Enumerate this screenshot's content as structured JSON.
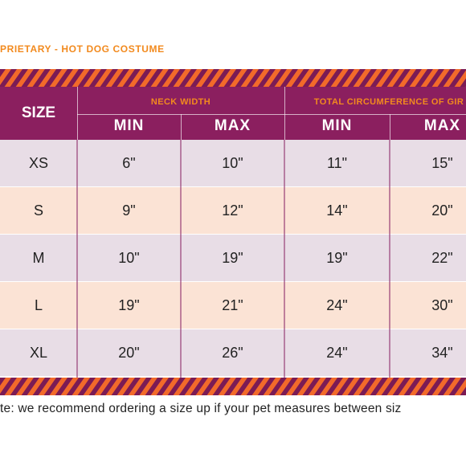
{
  "colors": {
    "accent_orange": "#f28a1e",
    "header_purple": "#8b1f5f",
    "stripe_purple": "#7b1b55",
    "stripe_orange": "#f26a2a",
    "row_lavender": "#e8dde6",
    "row_peach": "#fbe3d5"
  },
  "title": "PRIETARY - HOT DOG COSTUME",
  "table": {
    "size_header": "SIZE",
    "groups": [
      {
        "label": "NECK WIDTH",
        "min_label": "MIN",
        "max_label": "MAX"
      },
      {
        "label": "TOTAL CIRCUMFERENCE OF GIR",
        "min_label": "MIN",
        "max_label": "MAX"
      }
    ],
    "rows": [
      {
        "size": "XS",
        "neck_min": "6\"",
        "neck_max": "10\"",
        "girth_min": "11\"",
        "girth_max": "15\""
      },
      {
        "size": "S",
        "neck_min": "9\"",
        "neck_max": "12\"",
        "girth_min": "14\"",
        "girth_max": "20\""
      },
      {
        "size": "M",
        "neck_min": "10\"",
        "neck_max": "19\"",
        "girth_min": "19\"",
        "girth_max": "22\""
      },
      {
        "size": "L",
        "neck_min": "19\"",
        "neck_max": "21\"",
        "girth_min": "24\"",
        "girth_max": "30\""
      },
      {
        "size": "XL",
        "neck_min": "20\"",
        "neck_max": "26\"",
        "girth_min": "24\"",
        "girth_max": "34\""
      }
    ]
  },
  "note": "te: we recommend ordering a size up if your pet measures between siz"
}
